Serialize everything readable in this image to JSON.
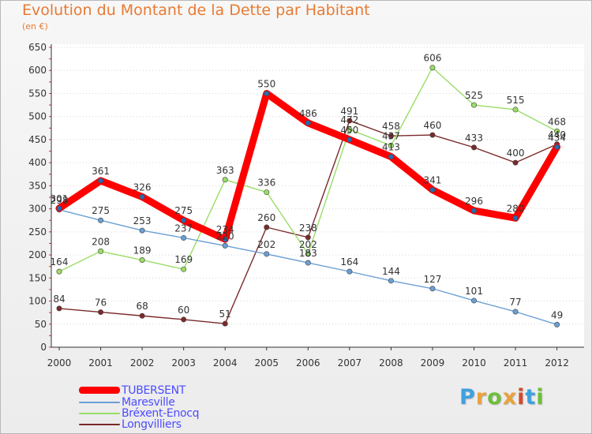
{
  "header": {
    "title": "Evolution du Montant de la Dette par Habitant",
    "subtitle": "(en €)"
  },
  "chart_data": {
    "type": "line",
    "title": "Evolution du Montant de la Dette par Habitant",
    "subtitle": "(en €)",
    "xlabel": "",
    "ylabel": "",
    "ylim": [
      0,
      650
    ],
    "yticks": [
      0,
      50,
      100,
      150,
      200,
      250,
      300,
      350,
      400,
      450,
      500,
      550,
      600,
      650
    ],
    "categories": [
      "2000",
      "2001",
      "2002",
      "2003",
      "2004",
      "2005",
      "2006",
      "2007",
      "2008",
      "2009",
      "2010",
      "2011",
      "2012"
    ],
    "grid": "horizontal",
    "legend_position": "bottom-left",
    "series": [
      {
        "name": "TUBERSENT",
        "color": "#ff0000",
        "values": [
          301,
          361,
          326,
          275,
          234,
          550,
          486,
          450,
          413,
          341,
          296,
          280,
          434
        ],
        "labels": [
          "301",
          "361",
          "326",
          "275",
          "234",
          "550",
          "486",
          "450",
          "413",
          "341",
          "296",
          "280",
          "434"
        ]
      },
      {
        "name": "Maresville",
        "color": "#6a9fd4",
        "values": [
          298,
          275,
          253,
          237,
          220,
          202,
          183,
          164,
          144,
          127,
          101,
          77,
          49
        ],
        "labels": [
          "298",
          "275",
          "253",
          "237",
          "220",
          "202",
          "183",
          "164",
          "144",
          "127",
          "101",
          "77",
          "49"
        ]
      },
      {
        "name": "Bréxent-Enocq",
        "color": "#99dd66",
        "values": [
          164,
          208,
          189,
          169,
          363,
          336,
          202,
          472,
          437,
          606,
          525,
          515,
          468
        ],
        "labels": [
          "164",
          "208",
          "189",
          "169",
          "363",
          "336",
          "202",
          "472",
          "437",
          "606",
          "525",
          "515",
          "468"
        ]
      },
      {
        "name": "Longvilliers",
        "color": "#7a2a2a",
        "values": [
          84,
          76,
          68,
          60,
          51,
          260,
          238,
          491,
          458,
          460,
          433,
          400,
          440
        ],
        "labels": [
          "84",
          "76",
          "68",
          "60",
          "51",
          "260",
          "238",
          "491",
          "458",
          "460",
          "433",
          "400",
          "440"
        ]
      }
    ]
  },
  "brand": {
    "letters": [
      "P",
      "r",
      "o",
      "x",
      "i",
      "t",
      "i"
    ],
    "colors": [
      "#3fa0de",
      "#e8a23a",
      "#6cbf3a",
      "#e8a23a",
      "#d24a2a",
      "#3fa0de",
      "#6cbf3a"
    ]
  }
}
